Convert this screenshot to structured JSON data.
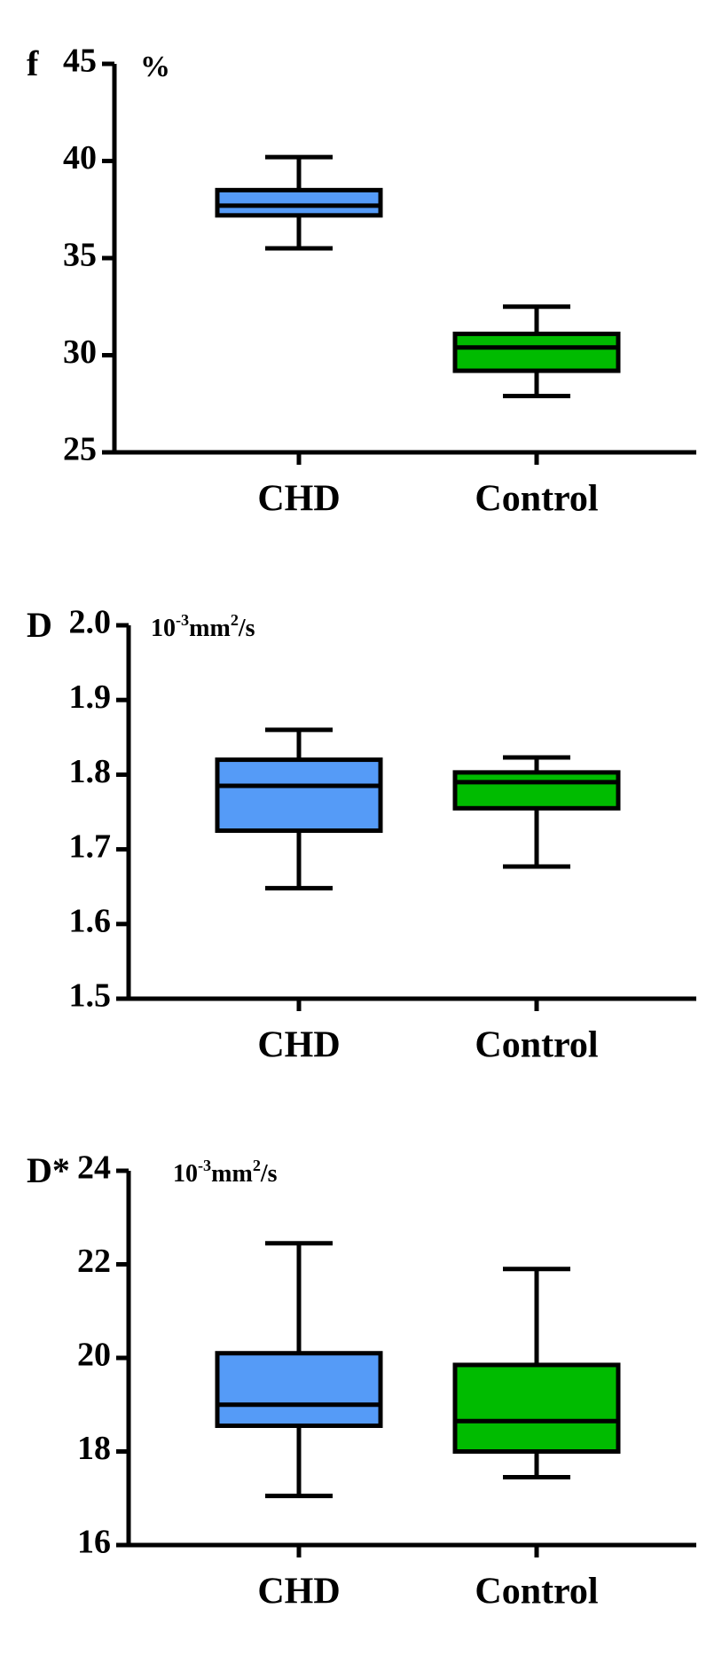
{
  "chart_data": [
    {
      "type": "box",
      "panel": "f",
      "unit": [
        {
          "text": "%"
        }
      ],
      "categories": [
        "CHD",
        "Control"
      ],
      "colors": [
        "#559bf7",
        "#00bb00"
      ],
      "boxes": [
        {
          "min": 35.5,
          "q1": 37.2,
          "median": 37.7,
          "q3": 38.5,
          "max": 40.2
        },
        {
          "min": 27.9,
          "q1": 29.2,
          "median": 30.4,
          "q3": 31.1,
          "max": 32.5
        }
      ],
      "ylim": [
        25,
        45
      ],
      "yticks": [
        25,
        30,
        35,
        40,
        45
      ]
    },
    {
      "type": "box",
      "panel": "D",
      "unit": [
        {
          "text": "10"
        },
        {
          "text": "-3",
          "sup": true
        },
        {
          "text": "mm"
        },
        {
          "text": "2",
          "sup": true
        },
        {
          "text": "/s"
        }
      ],
      "categories": [
        "CHD",
        "Control"
      ],
      "colors": [
        "#559bf7",
        "#00bb00"
      ],
      "boxes": [
        {
          "min": 1.648,
          "q1": 1.725,
          "median": 1.785,
          "q3": 1.82,
          "max": 1.86
        },
        {
          "min": 1.677,
          "q1": 1.755,
          "median": 1.79,
          "q3": 1.803,
          "max": 1.823
        }
      ],
      "ylim": [
        1.5,
        2
      ],
      "yticks": [
        1.5,
        1.6,
        1.7,
        1.8,
        1.9,
        {
          "value": 2,
          "label": "2.0"
        }
      ]
    },
    {
      "type": "box",
      "panel": "D*",
      "unit": [
        {
          "text": "10"
        },
        {
          "text": "-3",
          "sup": true
        },
        {
          "text": "mm"
        },
        {
          "text": "2",
          "sup": true
        },
        {
          "text": "/s"
        }
      ],
      "categories": [
        "CHD",
        "Control"
      ],
      "colors": [
        "#559bf7",
        "#00bb00"
      ],
      "boxes": [
        {
          "min": 17.05,
          "q1": 18.55,
          "median": 19.0,
          "q3": 20.1,
          "max": 22.45
        },
        {
          "min": 17.45,
          "q1": 18.0,
          "median": 18.65,
          "q3": 19.85,
          "max": 21.9
        }
      ],
      "ylim": [
        16,
        24
      ],
      "yticks": [
        16,
        18,
        20,
        22,
        24
      ]
    }
  ]
}
